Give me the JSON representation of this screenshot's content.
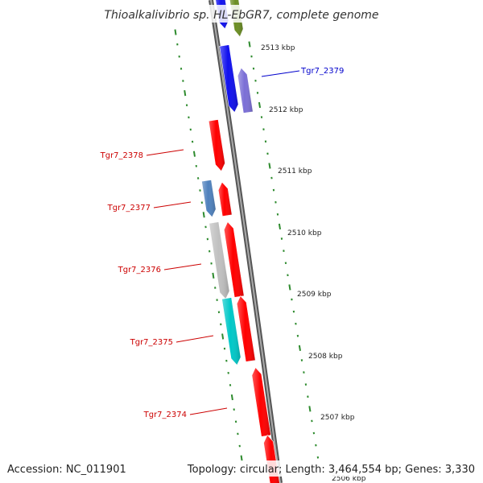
{
  "header": {
    "title": "Thioalkalivibrio sp. HL-EbGR7, complete genome"
  },
  "footer": {
    "accession": "Accession: NC_011901",
    "summary": "Topology: circular; Length: 3,464,554 bp; Genes: 3,330"
  },
  "colors": {
    "backbone": "#888888",
    "tick": "#2e8b2e",
    "label_red": "#cc0000",
    "label_blue": "#0000cc",
    "red": "#ff0000",
    "blue": "#1010ee",
    "purple": "#7b6fd6",
    "olive": "#6b8e23",
    "steel": "#4f81bd",
    "gray": "#c0c0c0",
    "cyan": "#00c8c8"
  },
  "map": {
    "kbp_markers": [
      "2513 kbp",
      "2512 kbp",
      "2511 kbp",
      "2510 kbp",
      "2509 kbp",
      "2508 kbp",
      "2507 kbp",
      "2506 kbp"
    ],
    "gene_labels": [
      {
        "text": "Tgr7_2379",
        "color": "blue"
      },
      {
        "text": "Tgr7_2378",
        "color": "red"
      },
      {
        "text": "Tgr7_2377",
        "color": "red"
      },
      {
        "text": "Tgr7_2376",
        "color": "red"
      },
      {
        "text": "Tgr7_2375",
        "color": "red"
      },
      {
        "text": "Tgr7_2374",
        "color": "red"
      }
    ],
    "genes": [
      {
        "strand": "forward",
        "color": "blue"
      },
      {
        "strand": "forward",
        "color": "olive"
      },
      {
        "strand": "forward",
        "color": "blue"
      },
      {
        "strand": "reverse",
        "color": "purple"
      },
      {
        "strand": "forward",
        "color": "red"
      },
      {
        "strand": "forward",
        "color": "steel"
      },
      {
        "strand": "reverse",
        "color": "red"
      },
      {
        "strand": "forward",
        "color": "gray"
      },
      {
        "strand": "reverse",
        "color": "red"
      },
      {
        "strand": "forward",
        "color": "cyan"
      },
      {
        "strand": "reverse",
        "color": "red"
      },
      {
        "strand": "reverse",
        "color": "red"
      },
      {
        "strand": "reverse",
        "color": "red"
      }
    ]
  }
}
